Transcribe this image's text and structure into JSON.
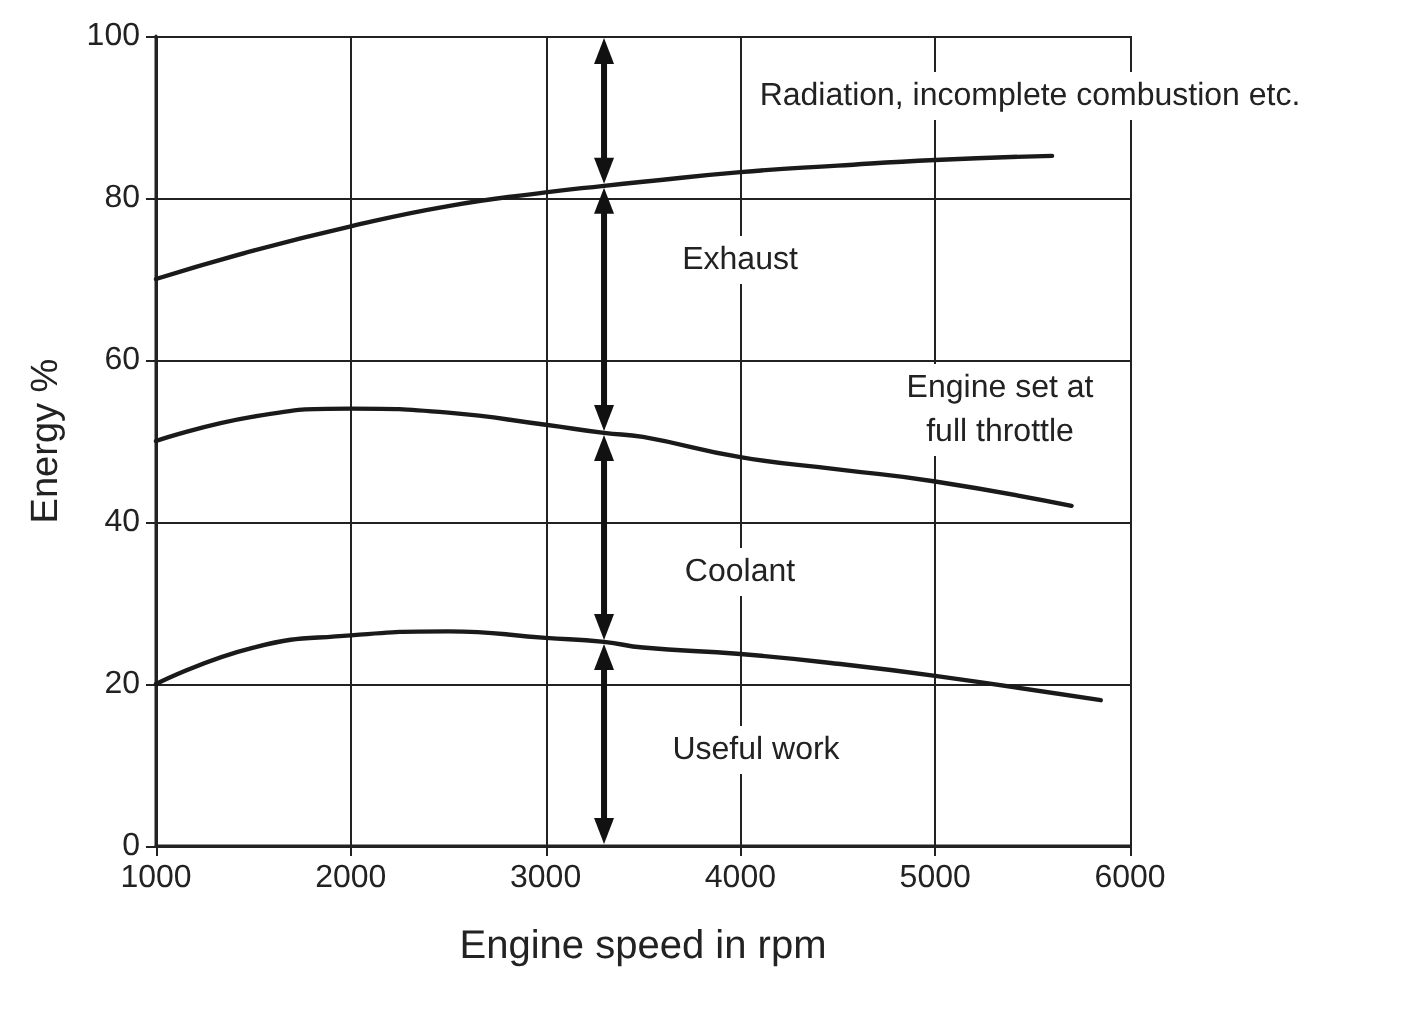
{
  "chart_data": {
    "type": "line",
    "xlabel": "Engine speed in rpm",
    "ylabel": "Energy %",
    "xlim": [
      1000,
      6000
    ],
    "xticks": [
      1000,
      2000,
      3000,
      4000,
      5000,
      6000
    ],
    "ylim": [
      0,
      100
    ],
    "yticks": [
      0,
      20,
      40,
      60,
      80,
      100
    ],
    "grid": true,
    "marker": "none",
    "line_style": "solid",
    "series": [
      {
        "color": "#1a1a1a",
        "x": [
          1000,
          1500,
          2000,
          2500,
          3000,
          3300,
          3500,
          4000,
          4500,
          5000,
          5600
        ],
        "values": [
          70,
          73.5,
          76.5,
          79,
          80.7,
          81.5,
          82,
          83.2,
          84,
          84.7,
          85.2
        ]
      },
      {
        "color": "#1a1a1a",
        "x": [
          1000,
          1500,
          2000,
          2500,
          3000,
          3300,
          3500,
          4000,
          4500,
          5000,
          5700
        ],
        "values": [
          50,
          53,
          54,
          53.5,
          52,
          51,
          50.5,
          48,
          46.5,
          45,
          42
        ]
      },
      {
        "color": "#1a1a1a",
        "x": [
          1000,
          1500,
          2000,
          2500,
          3000,
          3300,
          3500,
          4000,
          4500,
          5000,
          5850
        ],
        "values": [
          20,
          24.5,
          26,
          26.5,
          25.7,
          25.2,
          24.5,
          23.7,
          22.5,
          21,
          18
        ]
      }
    ],
    "annotations": [
      "Radiation, incomplete combustion etc.",
      "Exhaust",
      "Engine set at\nfull throttle",
      "Coolant",
      "Useful work"
    ]
  }
}
